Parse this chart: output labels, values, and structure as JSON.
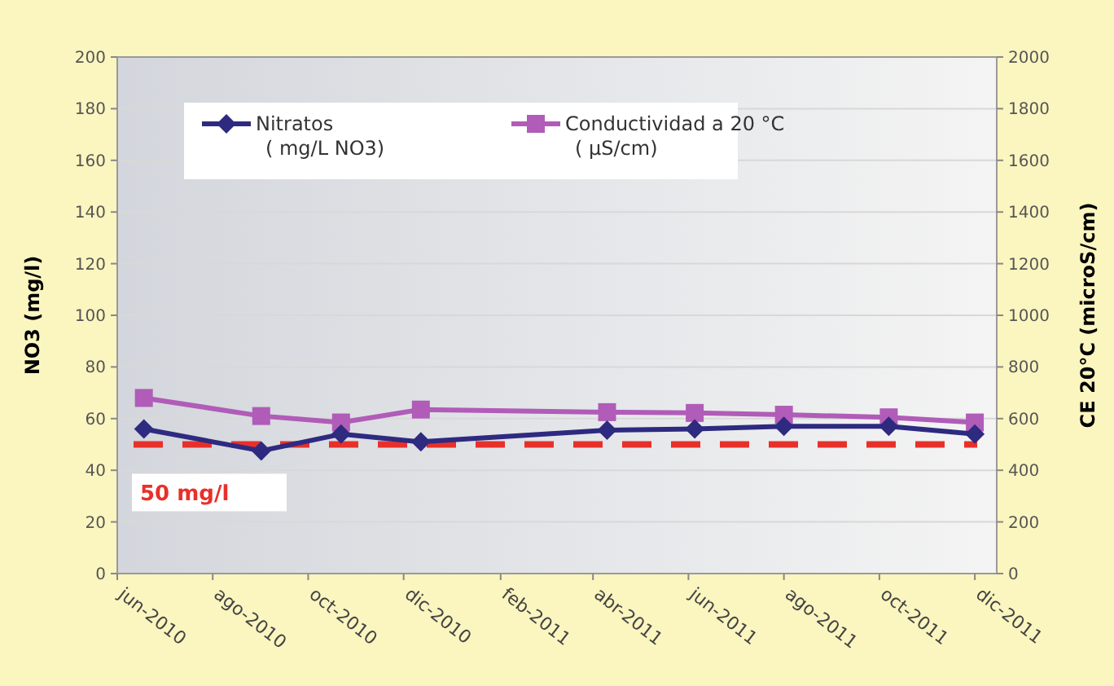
{
  "chart_data": {
    "type": "line",
    "ylabel": "NO3 (mg/l)",
    "y2label": "CE 20°C (microS/cm)",
    "x": [
      "2010-06-18",
      "2010-09-01",
      "2010-10-22",
      "2010-12-12",
      "2011-04-10",
      "2011-06-05",
      "2011-08-01",
      "2011-10-07",
      "2011-12-01"
    ],
    "series": [
      {
        "name": "Nitratos\n( mg/L NO3)",
        "color": "#2e2a80",
        "marker": "diamond",
        "values": [
          56,
          47.5,
          54,
          51,
          55.5,
          56,
          57,
          57,
          54
        ]
      },
      {
        "name": "Conductividad a 20 °C\n( µS/cm)",
        "color": "#b05cb8",
        "marker": "square",
        "axis": "y2",
        "values": [
          680,
          610,
          585,
          635,
          625,
          622,
          615,
          605,
          585
        ]
      }
    ],
    "xlim": [
      "2010-06-01",
      "2011-12-15"
    ],
    "xticks": [
      {
        "value": "2010-06",
        "label": "jun-2010"
      },
      {
        "value": "2010-08",
        "label": "ago-2010"
      },
      {
        "value": "2010-10",
        "label": "oct-2010"
      },
      {
        "value": "2010-12",
        "label": "dic-2010"
      },
      {
        "value": "2011-02",
        "label": "feb-2011"
      },
      {
        "value": "2011-04",
        "label": "abr-2011"
      },
      {
        "value": "2011-06",
        "label": "jun-2011"
      },
      {
        "value": "2011-08",
        "label": "ago-2011"
      },
      {
        "value": "2011-10",
        "label": "oct-2011"
      },
      {
        "value": "2011-12",
        "label": "dic-2011"
      }
    ],
    "ylim": [
      0,
      200
    ],
    "yticks": [
      0,
      20,
      40,
      60,
      80,
      100,
      120,
      140,
      160,
      180,
      200
    ],
    "y2lim": [
      0,
      2000
    ],
    "y2ticks": [
      0,
      200,
      400,
      600,
      800,
      1000,
      1200,
      1400,
      1600,
      1800,
      2000
    ],
    "ref_lines": [
      {
        "axis": "y",
        "value": 50,
        "label": "50 mg/l",
        "color": "#e8302a",
        "line_style": "dashed"
      }
    ],
    "grid": "y",
    "legend": "top"
  }
}
